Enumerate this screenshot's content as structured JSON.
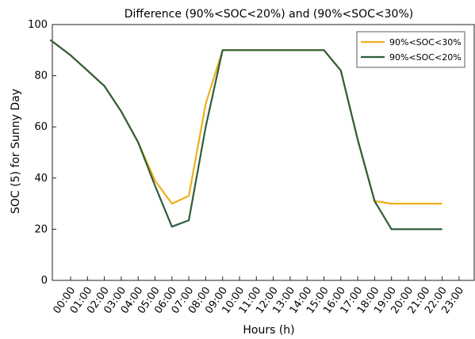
{
  "chart_data": {
    "type": "line",
    "title": "Difference (90%<SOC<20%) and (90%<SOC<30%)",
    "xlabel": "Hours (h)",
    "ylabel": "SOC (5) for Sunny Day",
    "ylim": [
      0,
      100
    ],
    "yticks": [
      "0",
      "20",
      "40",
      "60",
      "80",
      "100"
    ],
    "categories": [
      "00:00",
      "01:00",
      "02:00",
      "03:00",
      "04:00",
      "05:00",
      "06:00",
      "07:00",
      "08:00",
      "09:00",
      "10:00",
      "11:00",
      "12:00",
      "13:00",
      "14:00",
      "15:00",
      "16:00",
      "17:00",
      "18:00",
      "19:00",
      "20:00",
      "21:00",
      "22:00",
      "23:00"
    ],
    "grid": false,
    "legend_position": "top-right",
    "series": [
      {
        "name": "90%<SOC<30%",
        "color": "#f0ad1c",
        "x": [
          -1.2,
          0,
          1,
          2,
          3,
          4,
          5,
          6,
          7,
          8,
          9,
          10,
          11,
          12,
          13,
          14,
          15,
          16,
          17,
          18,
          19,
          20,
          21,
          22
        ],
        "values": [
          94,
          88,
          82,
          76,
          66,
          54,
          39,
          30,
          33,
          69,
          90,
          90,
          90,
          90,
          90,
          90,
          90,
          82,
          55,
          31,
          30,
          30,
          30,
          30
        ]
      },
      {
        "name": "90%<SOC<20%",
        "color": "#2e5e3a",
        "x": [
          -1.2,
          0,
          1,
          2,
          3,
          4,
          5,
          6,
          7,
          8,
          9,
          10,
          11,
          12,
          13,
          14,
          15,
          16,
          17,
          18,
          19,
          20,
          21,
          22
        ],
        "values": [
          94,
          88,
          82,
          76,
          66,
          54,
          37,
          21,
          23.5,
          60,
          90,
          90,
          90,
          90,
          90,
          90,
          90,
          82,
          55,
          31,
          20,
          20,
          20,
          20
        ]
      }
    ]
  }
}
